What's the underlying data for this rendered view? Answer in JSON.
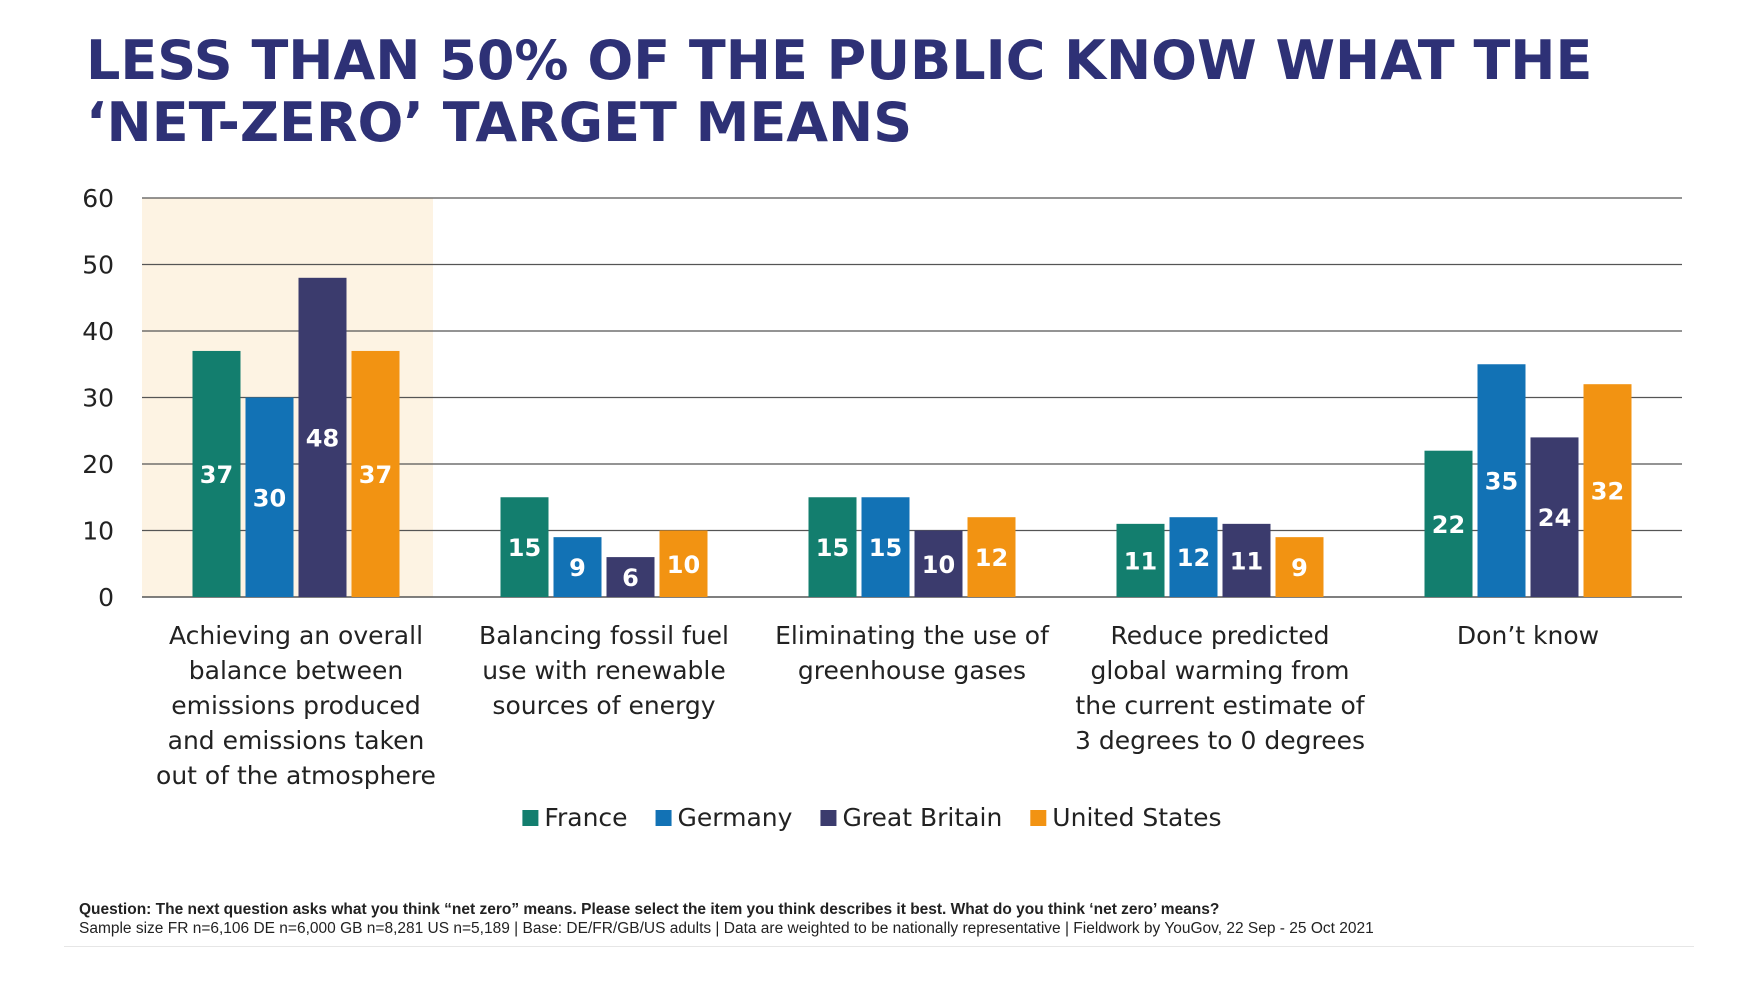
{
  "title": {
    "line1": "LESS THAN 50% OF THE PUBLIC KNOW WHAT THE",
    "line2": "‘NET-ZERO’ TARGET MEANS"
  },
  "colors": {
    "title": "#2e3176",
    "highlight": "#fdf3e3",
    "gridline": "#555555",
    "axis_text": "#222222"
  },
  "chart_data": {
    "type": "bar",
    "title": "LESS THAN 50% OF THE PUBLIC KNOW WHAT THE ‘NET-ZERO’ TARGET MEANS",
    "xlabel": "",
    "ylabel": "",
    "ylim": [
      0,
      60
    ],
    "yticks": [
      0,
      10,
      20,
      30,
      40,
      50,
      60
    ],
    "grid": true,
    "legend_position": "bottom-center",
    "highlighted_category": 0,
    "categories": [
      [
        "Achieving an overall",
        "balance between",
        "emissions produced",
        "and emissions taken",
        "out of the atmosphere"
      ],
      [
        "Balancing fossil fuel",
        "use with renewable",
        "sources of energy"
      ],
      [
        "Eliminating the use of",
        "greenhouse gases"
      ],
      [
        "Reduce predicted",
        "global warming from",
        "the current estimate of",
        "3 degrees to 0 degrees"
      ],
      [
        "Don’t know"
      ]
    ],
    "series": [
      {
        "name": "France",
        "color": "#137e6e",
        "values": [
          37,
          15,
          15,
          11,
          22
        ]
      },
      {
        "name": "Germany",
        "color": "#1272b5",
        "values": [
          30,
          9,
          15,
          12,
          35
        ]
      },
      {
        "name": "Great Britain",
        "color": "#3b3b6d",
        "values": [
          48,
          6,
          10,
          11,
          24
        ]
      },
      {
        "name": "United States",
        "color": "#f29312",
        "values": [
          37,
          10,
          12,
          9,
          32
        ]
      }
    ]
  },
  "footer": {
    "question": "Question: The next question asks what you think “net zero” means. Please select the item you think describes it best. What do you think ‘net zero’ means?",
    "sample": "Sample size FR n=6,106 DE n=6,000 GB n=8,281 US n=5,189 | Base: DE/FR/GB/US adults | Data are weighted to be nationally representative | Fieldwork by YouGov, 22 Sep - 25 Oct 2021"
  }
}
